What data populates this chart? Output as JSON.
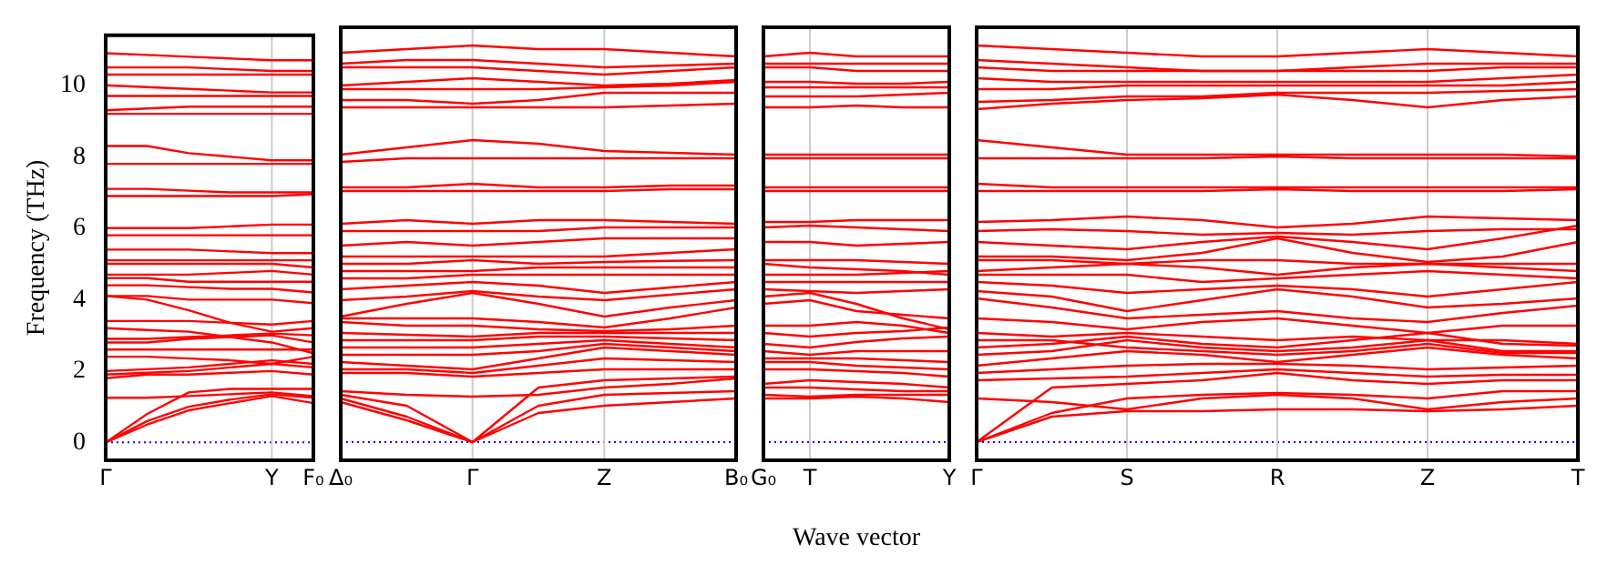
{
  "chart_data": [
    {
      "type": "line",
      "ylabel": "Frequency (THz)",
      "color": "#ff0000",
      "marker": "none",
      "categories": [
        "Γ",
        null,
        null,
        null,
        "Y",
        "F₀"
      ],
      "ylim": [
        -0.5,
        11.4
      ],
      "yticks": [
        0,
        2,
        4,
        6,
        8,
        10
      ],
      "ref_lines": [
        {
          "axis": "y",
          "value": 0,
          "color": "#0000ff",
          "line_style": "dotted"
        },
        {
          "axis": "x",
          "value": "Y",
          "color": "#cccccc",
          "line_style": "solid"
        }
      ],
      "series": [
        {
          "values": [
            0,
            0.5,
            0.9,
            1.1,
            1.3,
            1.1
          ]
        },
        {
          "values": [
            0,
            0.6,
            1.0,
            1.2,
            1.35,
            1.25
          ]
        },
        {
          "values": [
            0,
            0.8,
            1.4,
            1.5,
            1.5,
            1.5
          ]
        },
        {
          "values": [
            1.25,
            1.25,
            1.3,
            1.35,
            1.4,
            1.3
          ]
        },
        {
          "values": [
            1.8,
            1.9,
            1.9,
            1.95,
            2.0,
            1.9
          ]
        },
        {
          "values": [
            1.9,
            1.95,
            2.0,
            2.1,
            2.2,
            2.1
          ]
        },
        {
          "values": [
            2.0,
            2.05,
            2.1,
            2.2,
            2.3,
            2.2
          ]
        },
        {
          "values": [
            2.4,
            2.4,
            2.35,
            2.3,
            2.2,
            2.4
          ]
        },
        {
          "values": [
            2.6,
            2.6,
            2.6,
            2.6,
            2.6,
            2.6
          ]
        },
        {
          "values": [
            2.8,
            2.8,
            2.9,
            2.95,
            3.0,
            2.8
          ]
        },
        {
          "values": [
            2.9,
            2.9,
            2.95,
            3.0,
            3.05,
            3.0
          ]
        },
        {
          "values": [
            3.2,
            3.15,
            3.1,
            2.95,
            2.8,
            2.5
          ]
        },
        {
          "values": [
            3.4,
            3.4,
            3.4,
            3.35,
            3.3,
            3.4
          ]
        },
        {
          "values": [
            4.1,
            4.0,
            3.7,
            3.35,
            3.1,
            3.2
          ]
        },
        {
          "values": [
            4.1,
            4.1,
            4.0,
            4.0,
            4.0,
            3.9
          ]
        },
        {
          "values": [
            4.4,
            4.4,
            4.35,
            4.3,
            4.3,
            4.2
          ]
        },
        {
          "values": [
            4.6,
            4.6,
            4.5,
            4.5,
            4.5,
            4.5
          ]
        },
        {
          "values": [
            4.7,
            4.7,
            4.7,
            4.75,
            4.8,
            4.7
          ]
        },
        {
          "values": [
            5.0,
            5.0,
            5.0,
            5.0,
            5.0,
            4.9
          ]
        },
        {
          "values": [
            5.1,
            5.1,
            5.1,
            5.1,
            5.1,
            5.1
          ]
        },
        {
          "values": [
            5.4,
            5.4,
            5.4,
            5.35,
            5.3,
            5.3
          ]
        },
        {
          "values": [
            5.8,
            5.8,
            5.8,
            5.8,
            5.8,
            5.8
          ]
        },
        {
          "values": [
            6.0,
            6.0,
            6.0,
            6.05,
            6.1,
            6.1
          ]
        },
        {
          "values": [
            6.9,
            6.9,
            6.9,
            6.9,
            6.9,
            6.95
          ]
        },
        {
          "values": [
            7.1,
            7.1,
            7.05,
            7.0,
            7.0,
            7.0
          ]
        },
        {
          "values": [
            7.8,
            7.8,
            7.8,
            7.8,
            7.8,
            7.8
          ]
        },
        {
          "values": [
            8.3,
            8.3,
            8.1,
            8.0,
            7.9,
            7.9
          ]
        },
        {
          "values": [
            9.2,
            9.2,
            9.2,
            9.2,
            9.2,
            9.2
          ]
        },
        {
          "values": [
            9.3,
            9.35,
            9.4,
            9.4,
            9.4,
            9.4
          ]
        },
        {
          "values": [
            9.7,
            9.7,
            9.7,
            9.7,
            9.7,
            9.7
          ]
        },
        {
          "values": [
            10.0,
            9.95,
            9.9,
            9.85,
            9.8,
            9.8
          ]
        },
        {
          "values": [
            10.3,
            10.3,
            10.3,
            10.3,
            10.3,
            10.3
          ]
        },
        {
          "values": [
            10.5,
            10.5,
            10.5,
            10.45,
            10.4,
            10.4
          ]
        },
        {
          "values": [
            10.9,
            10.85,
            10.8,
            10.75,
            10.7,
            10.7
          ]
        }
      ]
    },
    {
      "type": "line",
      "color": "#ff0000",
      "marker": "none",
      "tick_labels": "x",
      "categories": [
        "Δ₀",
        null,
        "Γ",
        null,
        "Z",
        null,
        "B₀"
      ],
      "ylim": [
        -0.5,
        11.4
      ],
      "yticks": [
        0,
        2,
        4,
        6,
        8,
        10
      ],
      "ref_lines": [
        {
          "axis": "y",
          "value": 0,
          "color": "#0000ff",
          "line_style": "dotted"
        },
        {
          "axis": "x",
          "value": "Γ",
          "color": "#cccccc",
          "line_style": "solid"
        },
        {
          "axis": "x",
          "value": "Z",
          "color": "#cccccc",
          "line_style": "solid"
        }
      ],
      "series": [
        {
          "values": [
            1.1,
            0.6,
            0,
            0.8,
            1.0,
            1.1,
            1.2
          ]
        },
        {
          "values": [
            1.2,
            0.7,
            0,
            1.0,
            1.3,
            1.35,
            1.4
          ]
        },
        {
          "values": [
            1.3,
            1.0,
            0,
            1.5,
            1.7,
            1.75,
            1.8
          ]
        },
        {
          "values": [
            1.4,
            1.3,
            1.25,
            1.3,
            1.5,
            1.6,
            1.75
          ]
        },
        {
          "values": [
            1.9,
            1.9,
            1.8,
            1.9,
            2.0,
            2.0,
            2.0
          ]
        },
        {
          "values": [
            2.0,
            2.0,
            1.9,
            2.1,
            2.3,
            2.25,
            2.2
          ]
        },
        {
          "values": [
            2.2,
            2.1,
            2.0,
            2.3,
            2.6,
            2.5,
            2.4
          ]
        },
        {
          "values": [
            2.4,
            2.4,
            2.4,
            2.5,
            2.7,
            2.6,
            2.5
          ]
        },
        {
          "values": [
            2.6,
            2.6,
            2.6,
            2.7,
            2.8,
            2.7,
            2.6
          ]
        },
        {
          "values": [
            2.8,
            2.8,
            2.8,
            2.9,
            2.9,
            2.85,
            2.8
          ]
        },
        {
          "values": [
            3.0,
            2.95,
            2.9,
            3.0,
            3.0,
            3.0,
            3.0
          ]
        },
        {
          "values": [
            3.3,
            3.2,
            3.2,
            3.1,
            3.05,
            3.1,
            3.2
          ]
        },
        {
          "values": [
            3.4,
            3.4,
            3.4,
            3.3,
            3.15,
            3.4,
            3.7
          ]
        },
        {
          "values": [
            3.45,
            3.8,
            4.1,
            3.8,
            3.45,
            3.7,
            3.9
          ]
        },
        {
          "values": [
            3.9,
            4.0,
            4.15,
            4.0,
            3.9,
            4.05,
            4.2
          ]
        },
        {
          "values": [
            4.2,
            4.3,
            4.4,
            4.3,
            4.1,
            4.25,
            4.4
          ]
        },
        {
          "values": [
            4.5,
            4.5,
            4.6,
            4.6,
            4.6,
            4.6,
            4.6
          ]
        },
        {
          "values": [
            4.7,
            4.7,
            4.7,
            4.8,
            4.8,
            4.8,
            4.8
          ]
        },
        {
          "values": [
            4.9,
            4.9,
            5.0,
            4.9,
            4.95,
            4.98,
            5.0
          ]
        },
        {
          "values": [
            5.1,
            5.1,
            5.1,
            5.1,
            5.1,
            5.2,
            5.3
          ]
        },
        {
          "values": [
            5.4,
            5.5,
            5.4,
            5.5,
            5.6,
            5.6,
            5.6
          ]
        },
        {
          "values": [
            5.8,
            5.8,
            5.8,
            5.8,
            5.9,
            5.9,
            5.9
          ]
        },
        {
          "values": [
            6.0,
            6.1,
            6.0,
            6.1,
            6.1,
            6.05,
            6.0
          ]
        },
        {
          "values": [
            6.9,
            6.9,
            6.9,
            6.9,
            6.9,
            6.95,
            6.95
          ]
        },
        {
          "values": [
            7.0,
            7.0,
            7.1,
            7.0,
            7.0,
            7.05,
            7.05
          ]
        },
        {
          "values": [
            7.7,
            7.8,
            7.8,
            7.8,
            7.8,
            7.8,
            7.8
          ]
        },
        {
          "values": [
            7.9,
            8.1,
            8.3,
            8.2,
            8.0,
            7.95,
            7.9
          ]
        },
        {
          "values": [
            9.2,
            9.2,
            9.2,
            9.2,
            9.2,
            9.25,
            9.3
          ]
        },
        {
          "values": [
            9.4,
            9.4,
            9.3,
            9.4,
            9.6,
            9.6,
            9.6
          ]
        },
        {
          "values": [
            9.7,
            9.7,
            9.7,
            9.7,
            9.75,
            9.8,
            9.9
          ]
        },
        {
          "values": [
            9.8,
            9.9,
            10.0,
            9.9,
            9.8,
            9.85,
            9.95
          ]
        },
        {
          "values": [
            10.3,
            10.3,
            10.3,
            10.2,
            10.1,
            10.2,
            10.3
          ]
        },
        {
          "values": [
            10.4,
            10.5,
            10.5,
            10.4,
            10.3,
            10.35,
            10.4
          ]
        },
        {
          "values": [
            10.7,
            10.8,
            10.9,
            10.8,
            10.8,
            10.7,
            10.6
          ]
        }
      ]
    },
    {
      "type": "line",
      "xlabel": "Wave vector",
      "color": "#ff0000",
      "marker": "none",
      "tick_labels": "x",
      "categories": [
        "G₀",
        "T",
        null,
        null,
        "Y"
      ],
      "ylim": [
        -0.5,
        11.4
      ],
      "yticks": [
        0,
        2,
        4,
        6,
        8,
        10
      ],
      "ref_lines": [
        {
          "axis": "y",
          "value": 0,
          "color": "#0000ff",
          "line_style": "dotted"
        },
        {
          "axis": "x",
          "value": "T",
          "color": "#cccccc",
          "line_style": "solid"
        }
      ],
      "series": [
        {
          "values": [
            1.2,
            1.2,
            1.25,
            1.2,
            1.1
          ]
        },
        {
          "values": [
            1.3,
            1.25,
            1.3,
            1.3,
            1.3
          ]
        },
        {
          "values": [
            1.5,
            1.5,
            1.45,
            1.4,
            1.4
          ]
        },
        {
          "values": [
            1.6,
            1.7,
            1.65,
            1.6,
            1.5
          ]
        },
        {
          "values": [
            2.0,
            2.0,
            1.95,
            1.9,
            1.8
          ]
        },
        {
          "values": [
            2.2,
            2.2,
            2.1,
            2.05,
            2.0
          ]
        },
        {
          "values": [
            2.3,
            2.3,
            2.3,
            2.25,
            2.2
          ]
        },
        {
          "values": [
            2.5,
            2.4,
            2.5,
            2.5,
            2.5
          ]
        },
        {
          "values": [
            2.7,
            2.6,
            2.75,
            2.85,
            2.9
          ]
        },
        {
          "values": [
            3.0,
            2.9,
            3.0,
            3.05,
            3.15
          ]
        },
        {
          "values": [
            3.2,
            3.2,
            3.3,
            3.2,
            3.0
          ]
        },
        {
          "values": [
            3.8,
            3.9,
            3.6,
            3.5,
            3.4
          ]
        },
        {
          "values": [
            4.0,
            4.1,
            3.8,
            3.4,
            3.1
          ]
        },
        {
          "values": [
            4.2,
            4.15,
            4.1,
            4.15,
            4.2
          ]
        },
        {
          "values": [
            4.4,
            4.4,
            4.4,
            4.4,
            4.4
          ]
        },
        {
          "values": [
            4.6,
            4.6,
            4.6,
            4.65,
            4.7
          ]
        },
        {
          "values": [
            4.9,
            4.8,
            4.75,
            4.7,
            4.6
          ]
        },
        {
          "values": [
            5.0,
            5.0,
            5.0,
            4.95,
            4.9
          ]
        },
        {
          "values": [
            5.5,
            5.5,
            5.4,
            5.45,
            5.5
          ]
        },
        {
          "values": [
            5.9,
            5.95,
            5.9,
            5.85,
            5.8
          ]
        },
        {
          "values": [
            6.05,
            6.05,
            6.1,
            6.1,
            6.1
          ]
        },
        {
          "values": [
            6.9,
            6.9,
            6.9,
            6.9,
            6.9
          ]
        },
        {
          "values": [
            7.0,
            7.0,
            7.0,
            7.0,
            7.0
          ]
        },
        {
          "values": [
            7.8,
            7.8,
            7.8,
            7.8,
            7.8
          ]
        },
        {
          "values": [
            7.9,
            7.9,
            7.9,
            7.9,
            7.9
          ]
        },
        {
          "values": [
            9.2,
            9.2,
            9.25,
            9.2,
            9.2
          ]
        },
        {
          "values": [
            9.5,
            9.5,
            9.5,
            9.55,
            9.6
          ]
        },
        {
          "values": [
            9.75,
            9.75,
            9.75,
            9.75,
            9.75
          ]
        },
        {
          "values": [
            9.9,
            9.9,
            9.85,
            9.85,
            9.9
          ]
        },
        {
          "values": [
            10.3,
            10.3,
            10.2,
            10.2,
            10.2
          ]
        },
        {
          "values": [
            10.4,
            10.4,
            10.4,
            10.4,
            10.4
          ]
        },
        {
          "values": [
            10.6,
            10.7,
            10.6,
            10.6,
            10.6
          ]
        }
      ]
    },
    {
      "type": "line",
      "color": "#ff0000",
      "marker": "none",
      "tick_labels": "x",
      "categories": [
        "Γ",
        null,
        "S",
        null,
        "R",
        null,
        "Z",
        null,
        "T"
      ],
      "ylim": [
        -0.5,
        11.4
      ],
      "yticks": [
        0,
        2,
        4,
        6,
        8,
        10
      ],
      "ref_lines": [
        {
          "axis": "y",
          "value": 0,
          "color": "#0000ff",
          "line_style": "dotted"
        },
        {
          "axis": "x",
          "value": "S",
          "color": "#cccccc",
          "line_style": "solid"
        },
        {
          "axis": "x",
          "value": "R",
          "color": "#cccccc",
          "line_style": "solid"
        },
        {
          "axis": "x",
          "value": "Z",
          "color": "#cccccc",
          "line_style": "solid"
        }
      ],
      "series": [
        {
          "values": [
            0,
            0.7,
            0.85,
            0.85,
            0.9,
            0.9,
            0.85,
            0.9,
            1.0
          ]
        },
        {
          "values": [
            0,
            0.8,
            1.2,
            1.3,
            1.35,
            1.3,
            1.2,
            1.4,
            1.4
          ]
        },
        {
          "values": [
            0,
            1.5,
            1.6,
            1.7,
            1.9,
            1.7,
            1.6,
            1.7,
            1.7
          ]
        },
        {
          "values": [
            1.2,
            1.1,
            0.9,
            1.2,
            1.3,
            1.2,
            0.9,
            1.1,
            1.2
          ]
        },
        {
          "values": [
            1.7,
            1.75,
            1.8,
            1.9,
            2.0,
            1.9,
            1.8,
            1.85,
            1.85
          ]
        },
        {
          "values": [
            1.9,
            2.0,
            2.1,
            2.15,
            2.15,
            2.1,
            2.0,
            2.05,
            2.1
          ]
        },
        {
          "values": [
            2.1,
            2.3,
            2.5,
            2.4,
            2.2,
            2.4,
            2.6,
            2.4,
            2.3
          ]
        },
        {
          "values": [
            2.4,
            2.5,
            2.8,
            2.6,
            2.5,
            2.6,
            2.8,
            2.5,
            2.5
          ]
        },
        {
          "values": [
            2.6,
            2.7,
            2.9,
            2.7,
            2.6,
            2.8,
            3.0,
            2.7,
            2.65
          ]
        },
        {
          "values": [
            2.8,
            2.8,
            2.6,
            2.5,
            2.4,
            2.5,
            2.7,
            2.45,
            2.45
          ]
        },
        {
          "values": [
            3.0,
            2.9,
            3.0,
            2.9,
            2.8,
            2.9,
            2.8,
            2.8,
            2.7
          ]
        },
        {
          "values": [
            3.4,
            3.3,
            3.1,
            3.3,
            3.4,
            3.2,
            3.0,
            3.2,
            3.2
          ]
        },
        {
          "values": [
            3.95,
            3.7,
            3.4,
            3.5,
            3.6,
            3.4,
            3.3,
            3.55,
            3.75
          ]
        },
        {
          "values": [
            4.15,
            4.0,
            3.6,
            3.9,
            4.2,
            4.0,
            3.7,
            3.8,
            3.95
          ]
        },
        {
          "values": [
            4.4,
            4.3,
            4.1,
            4.2,
            4.3,
            4.2,
            4.0,
            4.2,
            4.4
          ]
        },
        {
          "values": [
            4.6,
            4.6,
            4.6,
            4.4,
            4.5,
            4.6,
            4.7,
            4.6,
            4.5
          ]
        },
        {
          "values": [
            4.7,
            4.8,
            4.9,
            4.8,
            4.6,
            4.8,
            4.9,
            4.8,
            4.7
          ]
        },
        {
          "values": [
            5.0,
            5.0,
            4.9,
            5.0,
            5.0,
            4.9,
            4.9,
            4.9,
            4.9
          ]
        },
        {
          "values": [
            5.1,
            5.1,
            5.0,
            5.2,
            5.6,
            5.2,
            4.95,
            5.1,
            5.5
          ]
        },
        {
          "values": [
            5.5,
            5.4,
            5.3,
            5.5,
            5.65,
            5.5,
            5.3,
            5.6,
            5.95
          ]
        },
        {
          "values": [
            5.8,
            5.85,
            5.8,
            5.7,
            5.75,
            5.7,
            5.8,
            5.85,
            5.85
          ]
        },
        {
          "values": [
            6.05,
            6.1,
            6.2,
            6.1,
            5.9,
            6.0,
            6.2,
            6.15,
            6.1
          ]
        },
        {
          "values": [
            6.9,
            6.9,
            6.9,
            6.9,
            6.95,
            6.9,
            6.9,
            6.9,
            6.95
          ]
        },
        {
          "values": [
            7.1,
            7.0,
            7.0,
            7.0,
            7.0,
            7.0,
            7.0,
            7.0,
            7.0
          ]
        },
        {
          "values": [
            7.8,
            7.8,
            7.8,
            7.8,
            7.85,
            7.8,
            7.8,
            7.8,
            7.8
          ]
        },
        {
          "values": [
            8.3,
            8.1,
            7.9,
            7.9,
            7.9,
            7.9,
            7.9,
            7.9,
            7.85
          ]
        },
        {
          "values": [
            9.15,
            9.3,
            9.4,
            9.45,
            9.55,
            9.4,
            9.2,
            9.4,
            9.5
          ]
        },
        {
          "values": [
            9.35,
            9.4,
            9.5,
            9.5,
            9.6,
            9.6,
            9.6,
            9.65,
            9.7
          ]
        },
        {
          "values": [
            9.7,
            9.7,
            9.8,
            9.8,
            9.8,
            9.8,
            9.8,
            9.8,
            9.9
          ]
        },
        {
          "values": [
            10.0,
            9.9,
            9.9,
            9.9,
            9.9,
            9.9,
            9.9,
            10.0,
            10.1
          ]
        },
        {
          "values": [
            10.3,
            10.2,
            10.2,
            10.2,
            10.2,
            10.2,
            10.2,
            10.3,
            10.3
          ]
        },
        {
          "values": [
            10.5,
            10.4,
            10.3,
            10.2,
            10.2,
            10.3,
            10.4,
            10.4,
            10.4
          ]
        },
        {
          "values": [
            10.9,
            10.8,
            10.7,
            10.6,
            10.6,
            10.7,
            10.8,
            10.7,
            10.6
          ]
        }
      ]
    }
  ]
}
